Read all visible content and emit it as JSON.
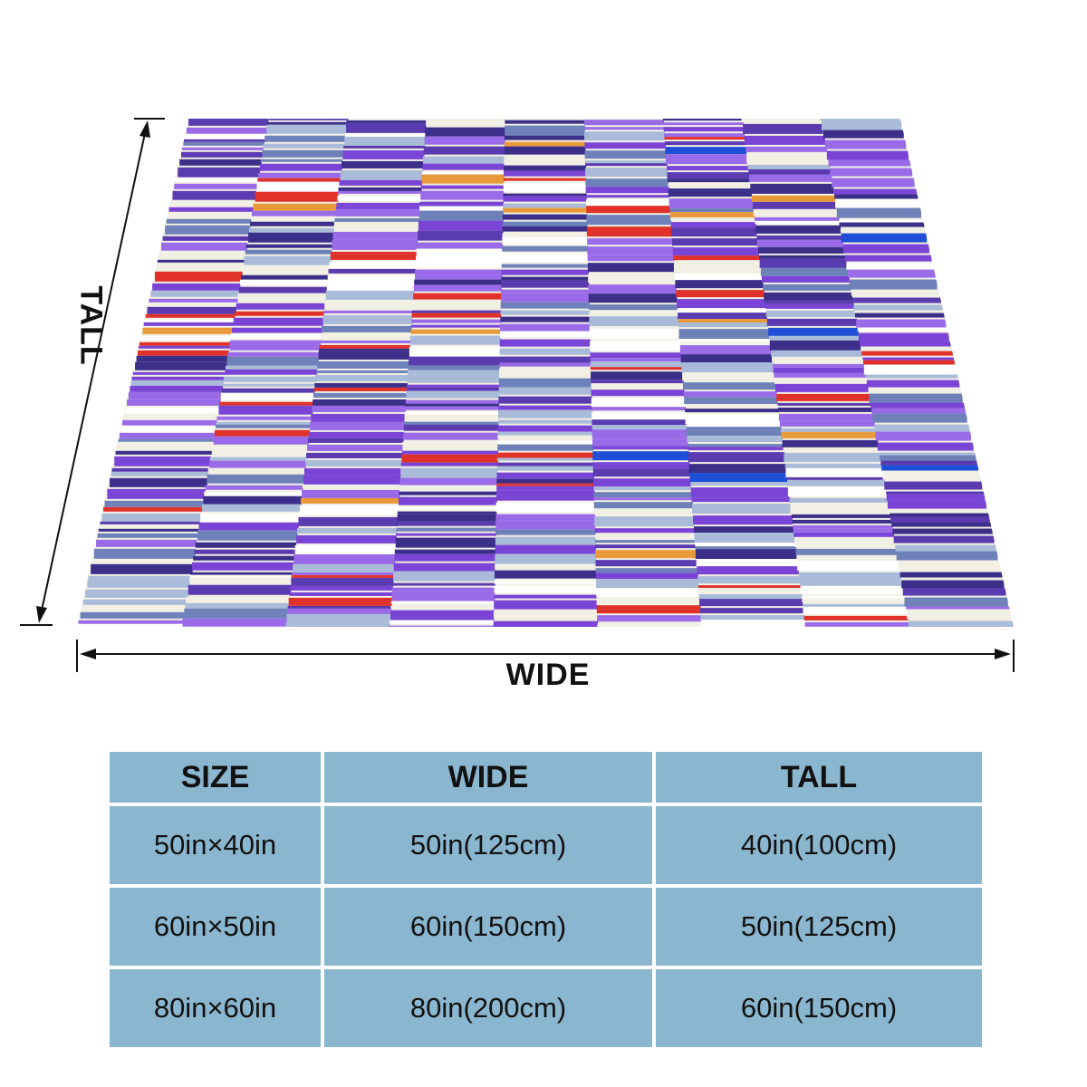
{
  "dimensions": {
    "wide_label": "WIDE",
    "tall_label": "TALL"
  },
  "product": {
    "pattern_colors": [
      "#7a45d6",
      "#5b3bb0",
      "#3b2f8a",
      "#6e82b9",
      "#a9bbd9",
      "#f2efe4",
      "#ffffff",
      "#9a6be8",
      "#e0322b",
      "#1f4fd6",
      "#e89a3a",
      "#bfe3df"
    ]
  },
  "size_table": {
    "headers": [
      "SIZE",
      "WIDE",
      "TALL"
    ],
    "rows": [
      [
        "50in×40in",
        "50in(125cm)",
        "40in(100cm)"
      ],
      [
        "60in×50in",
        "60in(150cm)",
        "50in(125cm)"
      ],
      [
        "80in×60in",
        "80in(200cm)",
        "60in(150cm)"
      ]
    ]
  },
  "colors": {
    "table_cell": "#8bb6cf",
    "text": "#111111"
  }
}
